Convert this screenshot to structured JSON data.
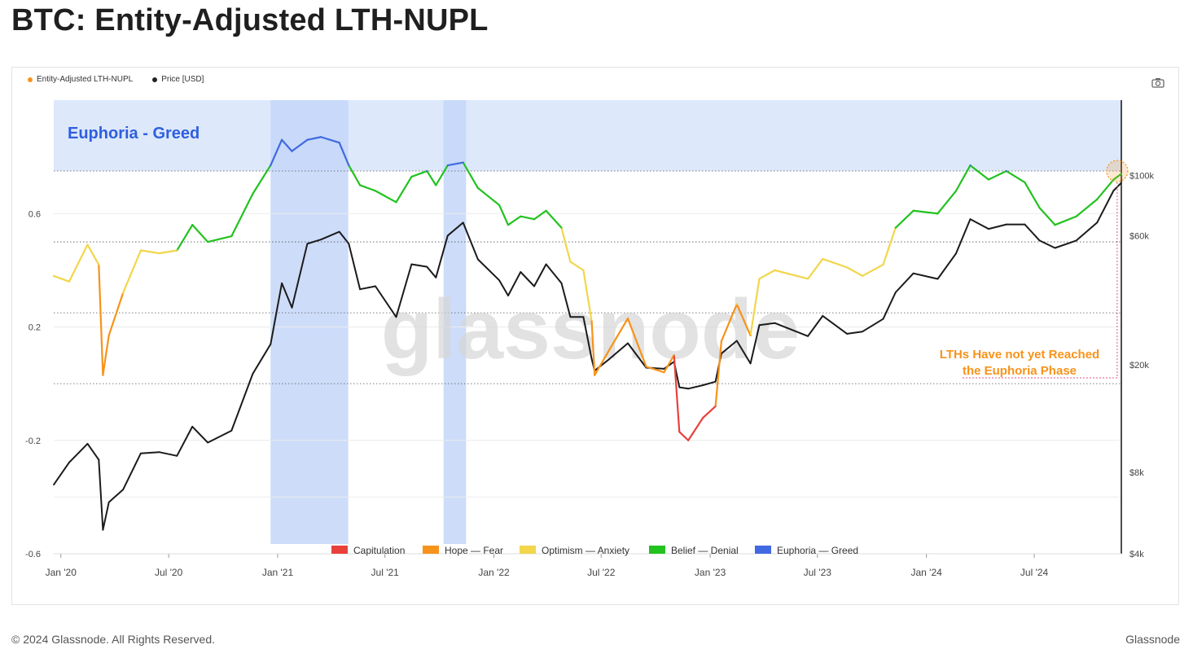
{
  "header": {
    "title": "BTC: Entity-Adjusted LTH-NUPL"
  },
  "legend": [
    {
      "label": "Entity-Adjusted LTH-NUPL",
      "color": "#f7931a"
    },
    {
      "label": "Price [USD]",
      "color": "#222222"
    }
  ],
  "footer": {
    "copyright": "© 2024 Glassnode. All Rights Reserved.",
    "brand": "Glassnode"
  },
  "watermark": "glassnode",
  "chart_data": {
    "type": "line",
    "title": "BTC: Entity-Adjusted LTH-NUPL",
    "x_tick_labels": [
      "Jan '20",
      "Jul '20",
      "Jan '21",
      "Jul '21",
      "Jan '22",
      "Jul '22",
      "Jan '23",
      "Jul '23",
      "Jan '24",
      "Jul '24"
    ],
    "x_ticks": [
      "2020-01-01",
      "2020-07-01",
      "2021-01-01",
      "2021-07-01",
      "2022-01-01",
      "2022-07-01",
      "2023-01-01",
      "2023-07-01",
      "2024-01-01",
      "2024-07-01"
    ],
    "x_range": [
      "2019-12-20",
      "2024-11-25"
    ],
    "y_left": {
      "label": "",
      "ticks": [
        0.6,
        0.2,
        -0.2,
        -0.6
      ],
      "tick_labels": [
        "0.6",
        "0.2",
        "-0.2",
        "-0.6"
      ],
      "range": [
        -0.6,
        1.0
      ]
    },
    "y_right": {
      "label": "",
      "scale": "log",
      "ticks": [
        100000,
        60000,
        20000,
        8000,
        4000
      ],
      "tick_labels": [
        "$100k",
        "$60k",
        "$20k",
        "$8k",
        "$4k"
      ],
      "range": [
        4000,
        190000
      ]
    },
    "zones": [
      {
        "name": "Euphoria - Greed",
        "from": 0.75,
        "to": 1.0,
        "color": "#4169e1"
      },
      {
        "name": "Belief - Denial",
        "from": 0.5,
        "to": 0.75,
        "color": "#22c21f"
      },
      {
        "name": "Optimism - Anxiety",
        "from": 0.25,
        "to": 0.5,
        "color": "#f2d64b"
      },
      {
        "name": "Hope - Fear",
        "from": 0.0,
        "to": 0.25,
        "color": "#f7931a"
      },
      {
        "name": "Capitulation",
        "from": -1.0,
        "to": 0.0,
        "color": "#e8413c"
      }
    ],
    "highlight_periods": [
      {
        "start": "2020-12-20",
        "end": "2021-04-30"
      },
      {
        "start": "2021-10-08",
        "end": "2021-11-15"
      }
    ],
    "zone_label": "Euphoria - Greed",
    "series": [
      {
        "name": "Entity-Adjusted LTH-NUPL",
        "axis": "left",
        "points": [
          [
            "2019-12-20",
            0.38
          ],
          [
            "2020-01-15",
            0.36
          ],
          [
            "2020-02-15",
            0.49
          ],
          [
            "2020-03-05",
            0.42
          ],
          [
            "2020-03-12",
            0.03
          ],
          [
            "2020-03-22",
            0.17
          ],
          [
            "2020-04-15",
            0.32
          ],
          [
            "2020-05-15",
            0.47
          ],
          [
            "2020-06-15",
            0.46
          ],
          [
            "2020-07-15",
            0.47
          ],
          [
            "2020-08-10",
            0.56
          ],
          [
            "2020-09-05",
            0.5
          ],
          [
            "2020-10-15",
            0.52
          ],
          [
            "2020-11-20",
            0.67
          ],
          [
            "2020-12-20",
            0.77
          ],
          [
            "2021-01-08",
            0.86
          ],
          [
            "2021-01-25",
            0.82
          ],
          [
            "2021-02-20",
            0.86
          ],
          [
            "2021-03-15",
            0.87
          ],
          [
            "2021-04-15",
            0.85
          ],
          [
            "2021-05-01",
            0.77
          ],
          [
            "2021-05-20",
            0.7
          ],
          [
            "2021-06-15",
            0.68
          ],
          [
            "2021-07-20",
            0.64
          ],
          [
            "2021-08-15",
            0.73
          ],
          [
            "2021-09-10",
            0.75
          ],
          [
            "2021-09-25",
            0.7
          ],
          [
            "2021-10-15",
            0.77
          ],
          [
            "2021-11-10",
            0.78
          ],
          [
            "2021-12-05",
            0.69
          ],
          [
            "2022-01-10",
            0.63
          ],
          [
            "2022-01-25",
            0.56
          ],
          [
            "2022-02-15",
            0.59
          ],
          [
            "2022-03-10",
            0.58
          ],
          [
            "2022-03-30",
            0.61
          ],
          [
            "2022-04-25",
            0.55
          ],
          [
            "2022-05-10",
            0.43
          ],
          [
            "2022-06-01",
            0.4
          ],
          [
            "2022-06-15",
            0.22
          ],
          [
            "2022-06-20",
            0.03
          ],
          [
            "2022-07-15",
            0.12
          ],
          [
            "2022-08-15",
            0.23
          ],
          [
            "2022-09-15",
            0.06
          ],
          [
            "2022-10-15",
            0.04
          ],
          [
            "2022-11-01",
            0.1
          ],
          [
            "2022-11-10",
            -0.17
          ],
          [
            "2022-11-25",
            -0.2
          ],
          [
            "2022-12-20",
            -0.12
          ],
          [
            "2023-01-10",
            -0.08
          ],
          [
            "2023-01-20",
            0.15
          ],
          [
            "2023-02-15",
            0.28
          ],
          [
            "2023-03-10",
            0.17
          ],
          [
            "2023-03-25",
            0.37
          ],
          [
            "2023-04-20",
            0.4
          ],
          [
            "2023-06-15",
            0.37
          ],
          [
            "2023-07-10",
            0.44
          ],
          [
            "2023-08-20",
            0.41
          ],
          [
            "2023-09-15",
            0.38
          ],
          [
            "2023-10-20",
            0.42
          ],
          [
            "2023-11-10",
            0.55
          ],
          [
            "2023-12-10",
            0.61
          ],
          [
            "2024-01-20",
            0.6
          ],
          [
            "2024-02-20",
            0.68
          ],
          [
            "2024-03-15",
            0.77
          ],
          [
            "2024-04-15",
            0.72
          ],
          [
            "2024-05-15",
            0.75
          ],
          [
            "2024-06-15",
            0.71
          ],
          [
            "2024-07-10",
            0.62
          ],
          [
            "2024-08-05",
            0.56
          ],
          [
            "2024-09-10",
            0.59
          ],
          [
            "2024-10-15",
            0.65
          ],
          [
            "2024-11-12",
            0.72
          ],
          [
            "2024-11-25",
            0.74
          ]
        ]
      },
      {
        "name": "Price [USD]",
        "axis": "right",
        "points": [
          [
            "2019-12-20",
            7200
          ],
          [
            "2020-01-15",
            8700
          ],
          [
            "2020-02-15",
            10200
          ],
          [
            "2020-03-05",
            8900
          ],
          [
            "2020-03-12",
            4900
          ],
          [
            "2020-03-22",
            6200
          ],
          [
            "2020-04-15",
            6900
          ],
          [
            "2020-05-15",
            9400
          ],
          [
            "2020-06-15",
            9500
          ],
          [
            "2020-07-15",
            9200
          ],
          [
            "2020-08-10",
            11800
          ],
          [
            "2020-09-05",
            10300
          ],
          [
            "2020-10-15",
            11400
          ],
          [
            "2020-11-20",
            18500
          ],
          [
            "2020-12-20",
            23800
          ],
          [
            "2021-01-08",
            40000
          ],
          [
            "2021-01-25",
            32500
          ],
          [
            "2021-02-20",
            56000
          ],
          [
            "2021-03-15",
            58000
          ],
          [
            "2021-04-15",
            62000
          ],
          [
            "2021-05-01",
            56000
          ],
          [
            "2021-05-20",
            38000
          ],
          [
            "2021-06-15",
            39000
          ],
          [
            "2021-07-20",
            30000
          ],
          [
            "2021-08-15",
            47000
          ],
          [
            "2021-09-10",
            46000
          ],
          [
            "2021-09-25",
            42000
          ],
          [
            "2021-10-15",
            60000
          ],
          [
            "2021-11-10",
            67000
          ],
          [
            "2021-12-05",
            49000
          ],
          [
            "2022-01-10",
            41000
          ],
          [
            "2022-01-25",
            36000
          ],
          [
            "2022-02-15",
            44000
          ],
          [
            "2022-03-10",
            39000
          ],
          [
            "2022-03-30",
            47000
          ],
          [
            "2022-04-25",
            40000
          ],
          [
            "2022-05-10",
            30000
          ],
          [
            "2022-06-01",
            30000
          ],
          [
            "2022-06-15",
            21000
          ],
          [
            "2022-06-20",
            19000
          ],
          [
            "2022-07-15",
            21000
          ],
          [
            "2022-08-15",
            24000
          ],
          [
            "2022-09-15",
            19500
          ],
          [
            "2022-10-15",
            19300
          ],
          [
            "2022-11-01",
            20500
          ],
          [
            "2022-11-10",
            16500
          ],
          [
            "2022-11-25",
            16300
          ],
          [
            "2022-12-20",
            16800
          ],
          [
            "2023-01-10",
            17300
          ],
          [
            "2023-01-20",
            22000
          ],
          [
            "2023-02-15",
            24500
          ],
          [
            "2023-03-10",
            20200
          ],
          [
            "2023-03-25",
            28000
          ],
          [
            "2023-04-20",
            28500
          ],
          [
            "2023-06-15",
            25500
          ],
          [
            "2023-07-10",
            30300
          ],
          [
            "2023-08-20",
            26000
          ],
          [
            "2023-09-15",
            26500
          ],
          [
            "2023-10-20",
            29500
          ],
          [
            "2023-11-10",
            37000
          ],
          [
            "2023-12-10",
            43500
          ],
          [
            "2024-01-20",
            41500
          ],
          [
            "2024-02-20",
            51500
          ],
          [
            "2024-03-15",
            69000
          ],
          [
            "2024-04-15",
            63500
          ],
          [
            "2024-05-15",
            66000
          ],
          [
            "2024-06-15",
            66000
          ],
          [
            "2024-07-10",
            57500
          ],
          [
            "2024-08-05",
            54000
          ],
          [
            "2024-09-10",
            57500
          ],
          [
            "2024-10-15",
            67000
          ],
          [
            "2024-11-12",
            88000
          ],
          [
            "2024-11-25",
            94000
          ]
        ]
      }
    ],
    "bottom_legend": [
      "Capitulation",
      "Hope — Fear",
      "Optimism — Anxiety",
      "Belief — Denial",
      "Euphoria — Greed"
    ],
    "annotation": {
      "text_lines": [
        "LTHs Have not yet Reached",
        "the Euphoria Phase"
      ],
      "color": "#f7931a",
      "x": "2024-11-18",
      "y": 0.75
    }
  }
}
